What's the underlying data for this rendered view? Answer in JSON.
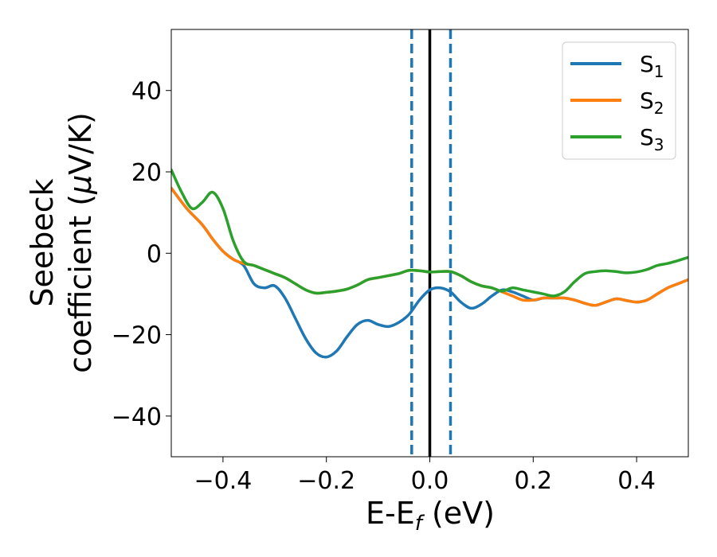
{
  "chart_data": {
    "type": "line",
    "title": "",
    "xlabel": {
      "main": "E-E",
      "sub": "f",
      "unit": " (eV)"
    },
    "ylabel": {
      "line1": "Seebeck",
      "line2_prefix": "coefficient  (",
      "mu": "μ",
      "line2_suffix": "V/K)"
    },
    "xlim": [
      -0.5,
      0.5
    ],
    "ylim": [
      -50,
      55
    ],
    "xticks": [
      -0.4,
      -0.2,
      0.0,
      0.2,
      0.4
    ],
    "xtick_labels": [
      "−0.4",
      "−0.2",
      "0.0",
      "0.2",
      "0.4"
    ],
    "yticks": [
      -40,
      -20,
      0,
      20,
      40
    ],
    "ytick_labels": [
      "−40",
      "−20",
      "0",
      "20",
      "40"
    ],
    "grid": false,
    "legend": {
      "placement": "top-right",
      "entries": [
        {
          "base": "S",
          "sub": "1",
          "color": "#1f77b4"
        },
        {
          "base": "S",
          "sub": "2",
          "color": "#ff7f0e"
        },
        {
          "base": "S",
          "sub": "3",
          "color": "#2ca02c"
        }
      ]
    },
    "vlines": [
      {
        "x": -0.035,
        "style": "dashed",
        "color": "#1f77b4"
      },
      {
        "x": 0.0,
        "style": "solid",
        "color": "#000000"
      },
      {
        "x": 0.04,
        "style": "dashed",
        "color": "#1f77b4"
      }
    ],
    "series": [
      {
        "name": "S1",
        "color": "#1f77b4",
        "x": [
          -0.5,
          -0.47,
          -0.44,
          -0.42,
          -0.4,
          -0.38,
          -0.36,
          -0.34,
          -0.32,
          -0.3,
          -0.28,
          -0.26,
          -0.24,
          -0.22,
          -0.2,
          -0.18,
          -0.16,
          -0.14,
          -0.12,
          -0.1,
          -0.08,
          -0.06,
          -0.04,
          -0.02,
          0.0,
          0.02,
          0.04,
          0.06,
          0.08,
          0.1,
          0.12,
          0.14,
          0.16,
          0.18,
          0.2,
          0.22,
          0.24,
          0.26,
          0.28,
          0.3,
          0.32,
          0.34,
          0.36,
          0.38,
          0.4,
          0.42,
          0.44,
          0.46,
          0.48,
          0.5
        ],
        "y": [
          16,
          11,
          7,
          3.5,
          0.5,
          -1.5,
          -3,
          -7.5,
          -8.5,
          -8,
          -11,
          -16,
          -21,
          -24.5,
          -25.5,
          -24,
          -20.5,
          -17.5,
          -16.5,
          -17.5,
          -18,
          -17,
          -15,
          -11.5,
          -9,
          -8.5,
          -9.5,
          -12,
          -13.5,
          -12.5,
          -10.5,
          -9,
          -9.5,
          -10.5,
          -11.5,
          -11,
          -11,
          -11,
          -11.5,
          -12.3,
          -12.8,
          -12,
          -11.2,
          -11.6,
          -12,
          -11.5,
          -10,
          -8.5,
          -7.5,
          -6.5
        ]
      },
      {
        "name": "S2",
        "color": "#ff7f0e",
        "x": [
          -0.5,
          -0.47,
          -0.44,
          -0.42,
          -0.4,
          -0.38,
          -0.36,
          -0.34,
          -0.32,
          -0.3,
          -0.28,
          -0.26,
          -0.24,
          -0.22,
          -0.2,
          -0.18,
          -0.16,
          -0.14,
          -0.12,
          -0.1,
          -0.08,
          -0.06,
          -0.04,
          -0.02,
          0.0,
          0.02,
          0.04,
          0.06,
          0.08,
          0.1,
          0.12,
          0.14,
          0.16,
          0.18,
          0.2,
          0.22,
          0.24,
          0.26,
          0.28,
          0.3,
          0.32,
          0.34,
          0.36,
          0.38,
          0.4,
          0.42,
          0.44,
          0.46,
          0.48,
          0.5
        ],
        "y": [
          16,
          11,
          7,
          3.5,
          0.5,
          -1.5,
          -2.5,
          -3,
          -4,
          -5,
          -6,
          -7.5,
          -9,
          -9.8,
          -9.6,
          -9.3,
          -8.8,
          -7.8,
          -6.5,
          -6,
          -5.5,
          -5,
          -4.2,
          -4.3,
          -4.6,
          -4.5,
          -4.5,
          -5.5,
          -7,
          -8,
          -8.5,
          -9.5,
          -10.5,
          -11.5,
          -11.5,
          -11,
          -11,
          -11,
          -11.5,
          -12.3,
          -12.8,
          -12,
          -11.2,
          -11.6,
          -12,
          -11.5,
          -10,
          -8.5,
          -7.5,
          -6.5
        ]
      },
      {
        "name": "S3",
        "color": "#2ca02c",
        "x": [
          -0.5,
          -0.48,
          -0.46,
          -0.44,
          -0.42,
          -0.4,
          -0.38,
          -0.36,
          -0.34,
          -0.32,
          -0.3,
          -0.28,
          -0.26,
          -0.24,
          -0.22,
          -0.2,
          -0.18,
          -0.16,
          -0.14,
          -0.12,
          -0.1,
          -0.08,
          -0.06,
          -0.04,
          -0.02,
          0.0,
          0.02,
          0.04,
          0.06,
          0.08,
          0.1,
          0.12,
          0.14,
          0.16,
          0.18,
          0.2,
          0.22,
          0.24,
          0.26,
          0.28,
          0.3,
          0.32,
          0.34,
          0.36,
          0.38,
          0.4,
          0.42,
          0.44,
          0.46,
          0.48,
          0.5
        ],
        "y": [
          20.5,
          15,
          11,
          12.5,
          15,
          11,
          3,
          -2,
          -3,
          -4,
          -5,
          -6,
          -7.5,
          -9,
          -9.8,
          -9.6,
          -9.3,
          -8.8,
          -7.8,
          -6.5,
          -6,
          -5.5,
          -5,
          -4.2,
          -4.3,
          -4.6,
          -4.5,
          -4.5,
          -5.5,
          -7,
          -8,
          -8.5,
          -9.3,
          -8.5,
          -9,
          -9.5,
          -10,
          -10.5,
          -9.5,
          -7,
          -5,
          -4.5,
          -4.3,
          -4.5,
          -4.8,
          -4.6,
          -4,
          -3,
          -2.5,
          -1.8,
          -1
        ]
      }
    ]
  }
}
